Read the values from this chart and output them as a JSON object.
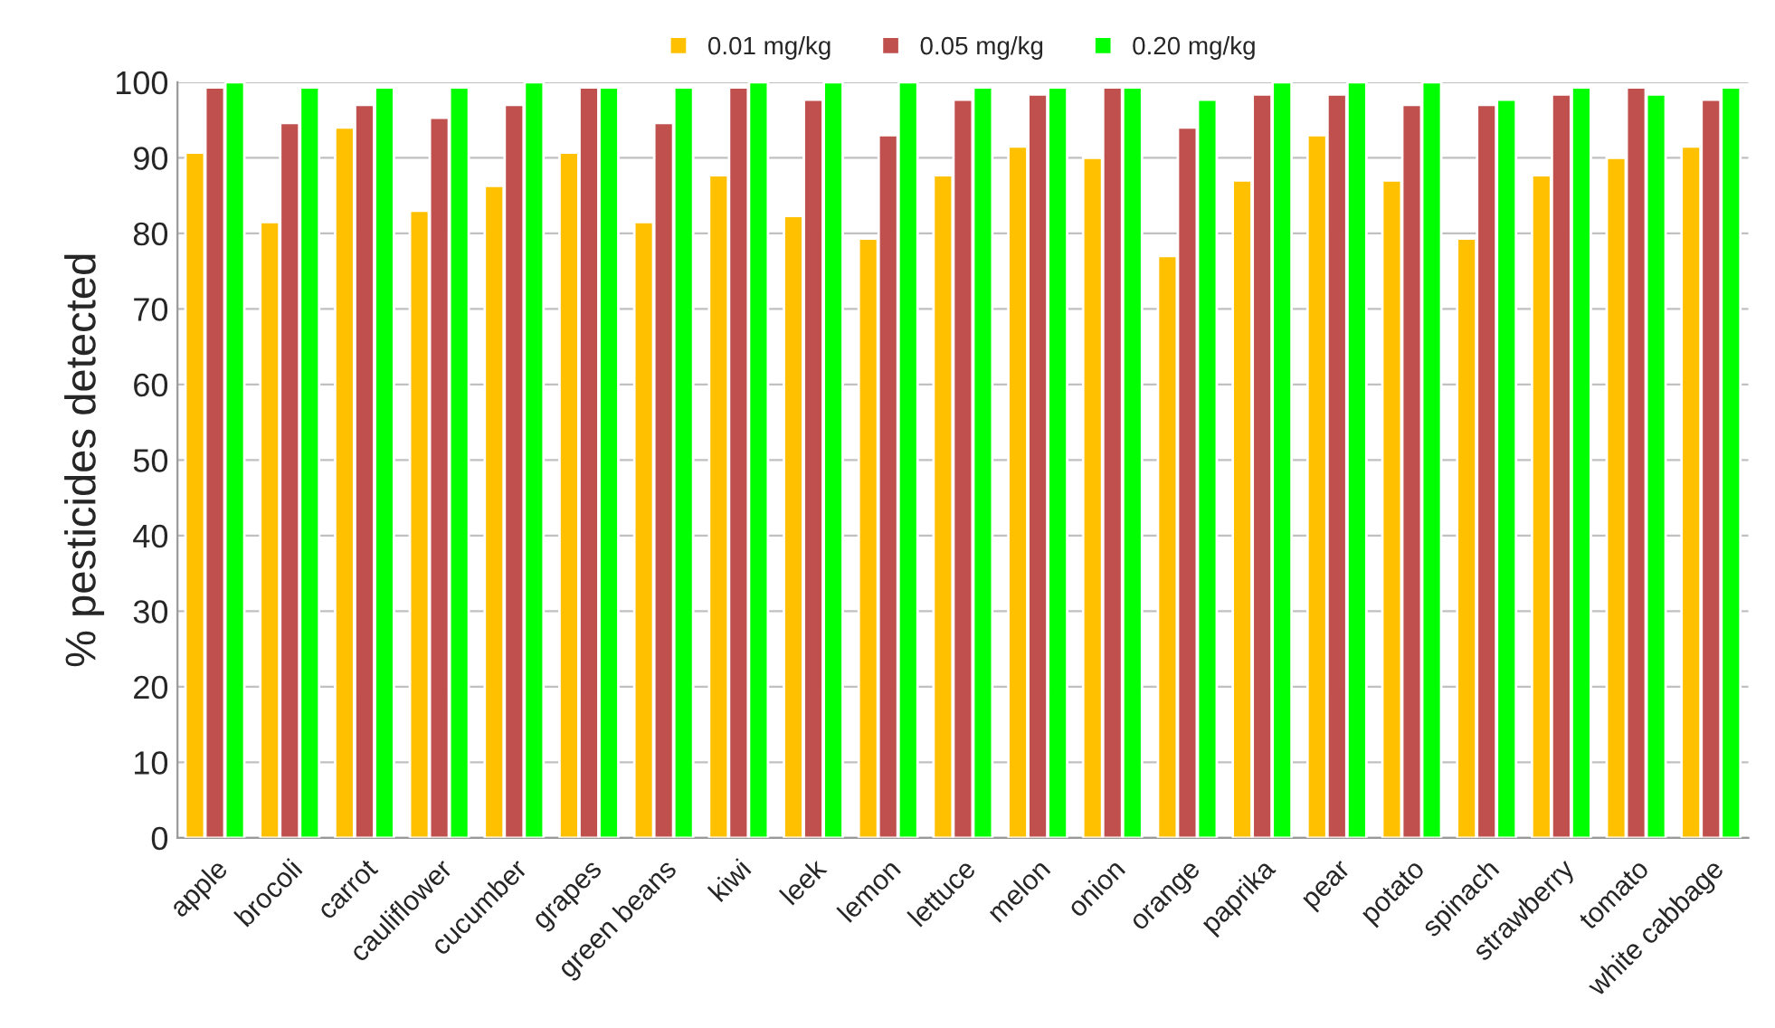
{
  "chart_data": {
    "type": "bar",
    "ylabel": "% pesticides detected",
    "categories": [
      "apple",
      "brocoli",
      "carrot",
      "cauliflower",
      "cucumber",
      "grapes",
      "green beans",
      "kiwi",
      "leek",
      "lemon",
      "lettuce",
      "melon",
      "onion",
      "orange",
      "paprika",
      "pear",
      "potato",
      "spinach",
      "strawberry",
      "tomato",
      "white cabbage"
    ],
    "series": [
      {
        "name": "0.01 mg/kg",
        "color": "#ffc000",
        "values": [
          90.7,
          81.5,
          94,
          83,
          86.3,
          90.7,
          81.5,
          87.7,
          82.3,
          79.3,
          87.7,
          91.5,
          90,
          77,
          87,
          93,
          87,
          79.3,
          87.7,
          90,
          91.5
        ]
      },
      {
        "name": "0.05 mg/kg",
        "color": "#c0504d",
        "values": [
          99.3,
          94.6,
          97,
          95.3,
          97,
          99.3,
          94.6,
          99.3,
          97.7,
          93,
          97.7,
          98.4,
          99.3,
          94,
          98.4,
          98.4,
          97,
          97,
          98.4,
          99.3,
          97.7
        ]
      },
      {
        "name": "0.20 mg/kg",
        "color": "#00ff00",
        "values": [
          100,
          99.3,
          99.3,
          99.3,
          100,
          99.3,
          99.3,
          100,
          100,
          100,
          99.3,
          99.3,
          99.3,
          97.7,
          100,
          100,
          100,
          97.7,
          99.3,
          98.4,
          99.3
        ]
      }
    ],
    "ylim": [
      0,
      100
    ],
    "yticks": [
      0,
      10,
      20,
      30,
      40,
      50,
      60,
      70,
      80,
      90,
      100
    ],
    "grid": "y",
    "legend": "top"
  }
}
